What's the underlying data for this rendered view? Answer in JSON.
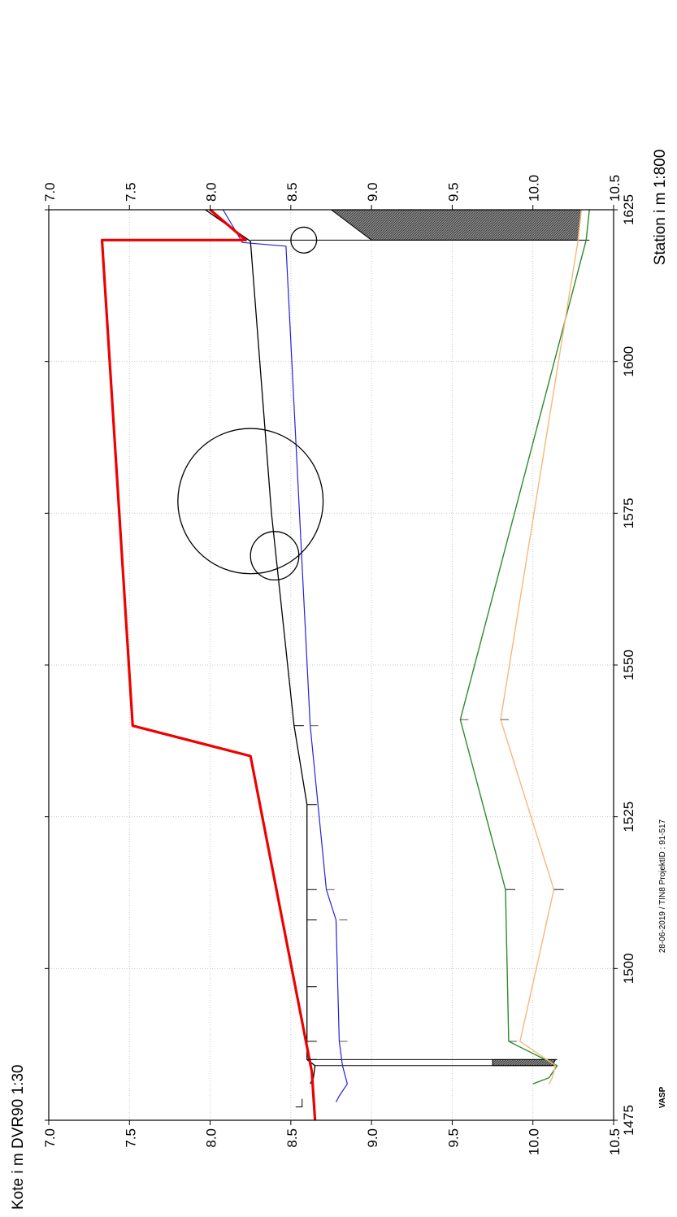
{
  "chart_data": {
    "type": "line",
    "orientation": "rotated-90-ccw",
    "ylabel": "Kote i m DVR90 1:30",
    "xlabel": "Station i m  1:800",
    "footer_left": "VASP",
    "footer_right": "28-06-2019 / TIN8  ProjektID : 91-517",
    "xlim": [
      1475,
      1625
    ],
    "ylim": [
      7.0,
      10.5
    ],
    "x_ticks": [
      "1475",
      "1500",
      "1525",
      "1550",
      "1575",
      "1600",
      "1625"
    ],
    "y_ticks": [
      "7.0",
      "7.5",
      "8.0",
      "8.5",
      "9.0",
      "9.5",
      "10.0",
      "10.5"
    ],
    "grid": true,
    "legend": "none",
    "series": [
      {
        "color": "#2e8b2e",
        "width": 1.4,
        "x": [
          1481,
          1482,
          1484,
          1488,
          1513,
          1541,
          1620,
          1625
        ],
        "y": [
          10.0,
          10.1,
          10.15,
          9.85,
          9.83,
          9.55,
          10.33,
          10.35
        ]
      },
      {
        "color": "#f5b87a",
        "width": 1.4,
        "x": [
          1481,
          1482,
          1484,
          1488,
          1513,
          1541,
          1620,
          1625
        ],
        "y": [
          10.1,
          10.12,
          10.14,
          9.92,
          10.13,
          9.8,
          10.28,
          10.3
        ]
      },
      {
        "color": "#2222dd",
        "width": 1.2,
        "x": [
          1478,
          1479,
          1481,
          1484,
          1488,
          1508,
          1513,
          1540,
          1619,
          1619.6,
          1625
        ],
        "y": [
          8.78,
          8.8,
          8.85,
          8.82,
          8.8,
          8.78,
          8.72,
          8.62,
          8.47,
          8.2,
          8.08
        ]
      },
      {
        "color": "#000000",
        "width": 1.3,
        "x": [
          1481,
          1482,
          1484,
          1485,
          1488,
          1497,
          1508,
          1513,
          1527,
          1540,
          1575,
          1619.8,
          1625
        ],
        "y": [
          8.62,
          8.64,
          8.65,
          8.6,
          8.6,
          8.6,
          8.6,
          8.6,
          8.6,
          8.52,
          8.38,
          8.25,
          7.97
        ]
      },
      {
        "color": "#ee0000",
        "width": 3.2,
        "x": [
          1475,
          1483,
          1535,
          1540,
          1620,
          1620,
          1625
        ],
        "y": [
          8.65,
          8.63,
          8.25,
          7.52,
          7.33,
          8.22,
          8.0
        ]
      }
    ],
    "bands": [
      {
        "x": [
          1484,
          1485
        ],
        "top": [
          10.12,
          10.14
        ],
        "bottom": [
          9.75,
          9.75
        ]
      },
      {
        "x": [
          1620,
          1625
        ],
        "top": [
          10.28,
          10.3
        ],
        "bottom": [
          9.0,
          8.75
        ]
      }
    ],
    "verticals": [
      {
        "x": 1484,
        "y1": 8.65,
        "y2": 10.15
      },
      {
        "x": 1485,
        "y1": 8.6,
        "y2": 10.15
      },
      {
        "x": 1620,
        "y1": 8.25,
        "y2": 10.35
      }
    ],
    "markers": [
      {
        "x": 1478,
        "y": 8.57,
        "dir": "corner"
      },
      {
        "x": 1485,
        "y": 8.6
      },
      {
        "x": 1488,
        "y": 8.6
      },
      {
        "x": 1497,
        "y": 8.6
      },
      {
        "x": 1508,
        "y": 8.6
      },
      {
        "x": 1513,
        "y": 8.6
      },
      {
        "x": 1527,
        "y": 8.6
      },
      {
        "x": 1540,
        "y": 8.52
      },
      {
        "x": 1513,
        "y": 10.13
      },
      {
        "x": 1513,
        "y": 9.83
      }
    ],
    "circles": [
      {
        "x": 1577,
        "y": 8.25,
        "r": 0.45
      },
      {
        "x": 1568,
        "y": 8.4,
        "r": 0.15
      },
      {
        "x": 1620,
        "y": 8.58,
        "r": 0.08
      }
    ]
  }
}
